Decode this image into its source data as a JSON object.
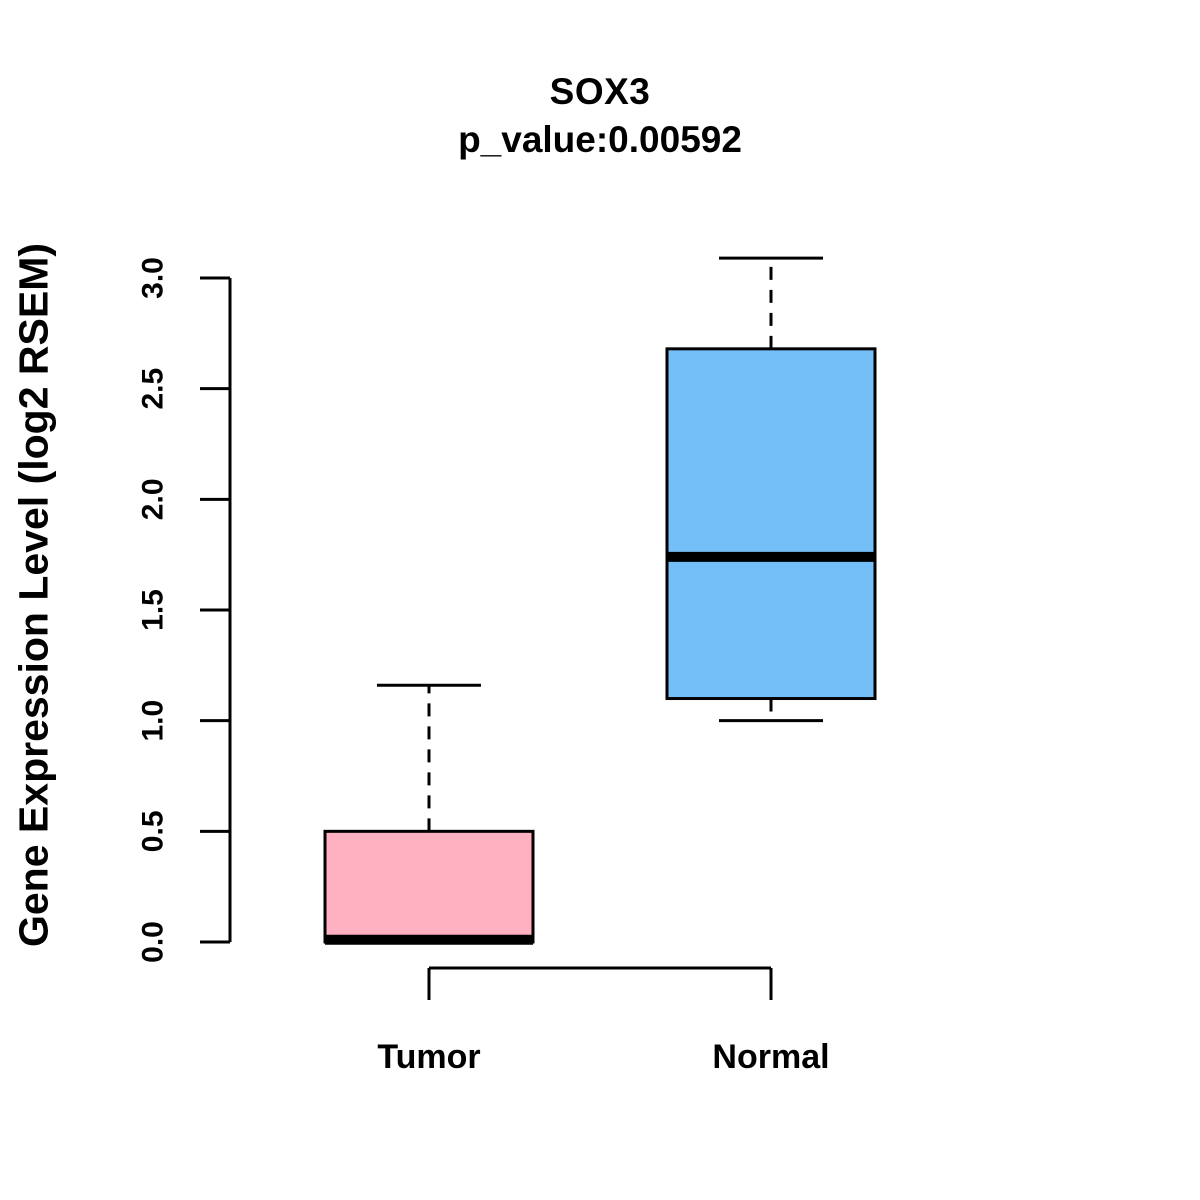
{
  "chart_data": {
    "type": "boxplot",
    "title": "SOX3",
    "subtitle": "p_value:0.00592",
    "ylabel": "Gene Expression Level (log2 RSEM)",
    "xlabel": "",
    "categories": [
      "Tumor",
      "Normal"
    ],
    "yaxis_range": [
      0,
      3
    ],
    "yticks": [
      0,
      0.5,
      1,
      1.5,
      2,
      2.5,
      3
    ],
    "ytick_label_format": "one_decimal",
    "grid": false,
    "legend": "none",
    "line_color": "#000000",
    "background_color": "#FFFFFF",
    "series": [
      {
        "name": "Tumor",
        "min": 0,
        "q1": 0,
        "median": 0.01,
        "q3": 0.5,
        "max": 1.16,
        "fill": "#FFB1C1"
      },
      {
        "name": "Normal",
        "min": 1.0,
        "q1": 1.1,
        "median": 1.74,
        "q3": 2.68,
        "max": 3.09,
        "fill": "#74BFF7"
      }
    ]
  }
}
